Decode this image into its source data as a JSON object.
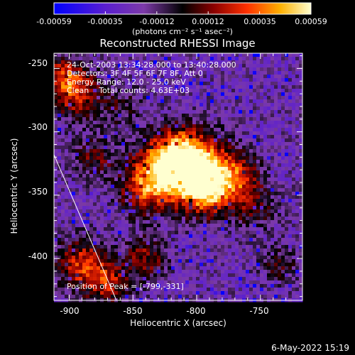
{
  "colorbar": {
    "ticks": [
      "-0.00059",
      "-0.00035",
      "-0.00012",
      "0.00012",
      "0.00035",
      "0.00059"
    ],
    "units": "(photons cm⁻² s⁻¹ asec⁻²)"
  },
  "chart_data": {
    "type": "heatmap",
    "title": "Reconstructed RHESSI Image",
    "xlabel": "Heliocentric X (arcsec)",
    "ylabel": "Heliocentric Y (arcsec)",
    "xlim": [
      -912,
      -717
    ],
    "ylim": [
      -433,
      -238
    ],
    "x_ticks": [
      -900,
      -850,
      -800,
      -750
    ],
    "y_ticks": [
      -250,
      -300,
      -350,
      -400
    ],
    "value_range": [
      -0.00059,
      0.00059
    ],
    "annotations": [
      "24-Oct-2003 13:34:28.000 to 13:40:28.000",
      "Detectors: 3F 4F 5F 6F 7F 8F, Att 0",
      "Energy Range: 12.0 - 25.0 keV",
      "Clean    Total counts: 4.63E+03"
    ],
    "peak_label": "Position of Peak = [-799,-331]",
    "peak": [
      -799,
      -331
    ],
    "limb_line": [
      [
        -912,
        -318
      ],
      [
        -863,
        -433
      ]
    ]
  },
  "footer": {
    "date": "6-May-2022 15:19"
  }
}
